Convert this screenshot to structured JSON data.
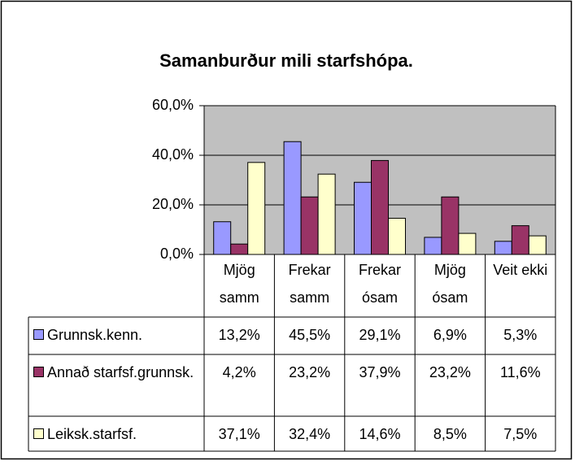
{
  "chart_data": {
    "type": "bar",
    "title": "Samanburður mili starfshópa.",
    "categories": [
      "Mjög samm",
      "Frekar samm",
      "Frekar ósam",
      "Mjög ósam",
      "Veit ekki"
    ],
    "series": [
      {
        "name": "Grunnsk.kenn.",
        "color": "#9999ff",
        "values": [
          13.2,
          45.5,
          29.1,
          6.9,
          5.3
        ],
        "value_labels": [
          "13,2%",
          "45,5%",
          "29,1%",
          "6,9%",
          "5,3%"
        ]
      },
      {
        "name": "Annað starfsf.grunnsk.",
        "color": "#993366",
        "values": [
          4.2,
          23.2,
          37.9,
          23.2,
          11.6
        ],
        "value_labels": [
          "4,2%",
          "23,2%",
          "37,9%",
          "23,2%",
          "11,6%"
        ]
      },
      {
        "name": "Leiksk.starfsf.",
        "color": "#ffffcc",
        "values": [
          37.1,
          32.4,
          14.6,
          8.5,
          7.5
        ],
        "value_labels": [
          "37,1%",
          "32,4%",
          "14,6%",
          "8,5%",
          "7,5%"
        ]
      }
    ],
    "ylim": [
      0,
      60
    ],
    "yticks": [
      {
        "value": 0,
        "label": "0,0%"
      },
      {
        "value": 20,
        "label": "20,0%"
      },
      {
        "value": 40,
        "label": "40,0%"
      },
      {
        "value": 60,
        "label": "60,0%"
      }
    ],
    "grid": true
  }
}
